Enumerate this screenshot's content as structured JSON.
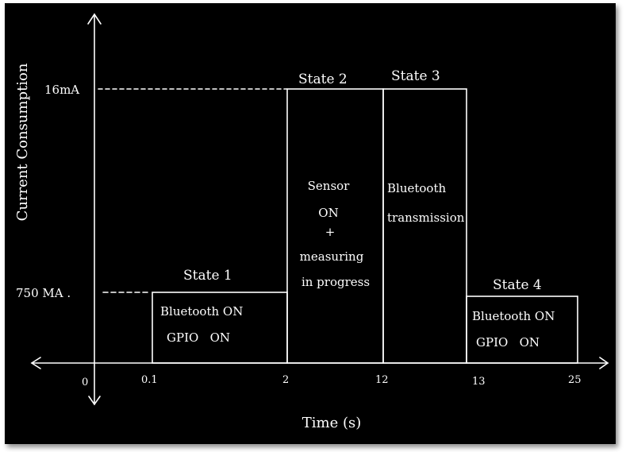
{
  "diagram": {
    "y_axis_title": "Current Consumption",
    "x_axis_title": "Time (s)",
    "y_levels": [
      {
        "label": "16mA"
      },
      {
        "label": "750 MA ."
      }
    ],
    "x_ticks": [
      "0",
      "0.1",
      "2",
      "12",
      "13",
      "25"
    ],
    "states": [
      {
        "name": "State 1",
        "lines": [
          "Bluetooth ON",
          "GPIO   ON"
        ]
      },
      {
        "name": "State 2",
        "lines": [
          "Sensor",
          "ON",
          "+",
          "measuring",
          "in progress"
        ]
      },
      {
        "name": "State 3",
        "lines": [
          "Bluetooth",
          "transmission"
        ]
      },
      {
        "name": "State 4",
        "lines": [
          "Bluetooth ON",
          "GPIO   ON"
        ]
      }
    ],
    "colors": {
      "background": "#000000",
      "ink": "#ffffff"
    }
  }
}
